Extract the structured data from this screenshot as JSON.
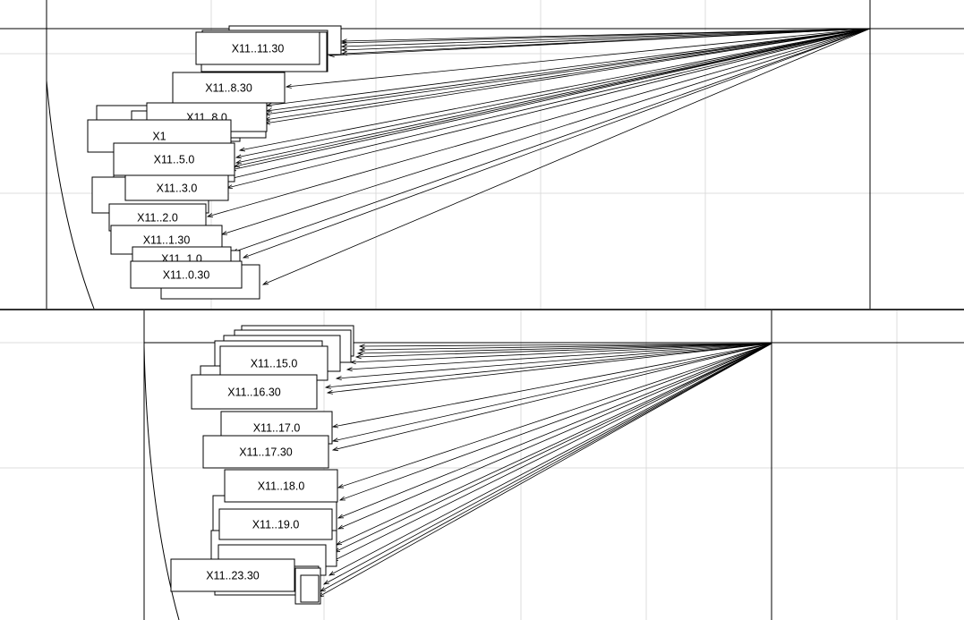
{
  "chart_data": [
    {
      "type": "scatter",
      "panel": "top",
      "description_free": true,
      "grid": true,
      "origin": [
        0,
        0
      ],
      "points": [
        {
          "label": "X11..11.30"
        },
        {
          "label": "X11..8.30"
        },
        {
          "label": "X11..8.0"
        },
        {
          "label": "X1"
        },
        {
          "label": "X11..5.0"
        },
        {
          "label": "X11..3.0"
        },
        {
          "label": "X11..2.0"
        },
        {
          "label": "X11..1.30"
        },
        {
          "label": "X11..1.0"
        },
        {
          "label": "X11..0.30"
        }
      ]
    },
    {
      "type": "scatter",
      "panel": "bottom",
      "grid": true,
      "origin": [
        0,
        0
      ],
      "points": [
        {
          "label": "X11..15.0"
        },
        {
          "label": "X11..16.30"
        },
        {
          "label": "X11..17.0"
        },
        {
          "label": "X11..17.30"
        },
        {
          "label": "X11..18.0"
        },
        {
          "label": "X11..19.0"
        },
        {
          "label": "X11..23.30"
        }
      ]
    }
  ]
}
